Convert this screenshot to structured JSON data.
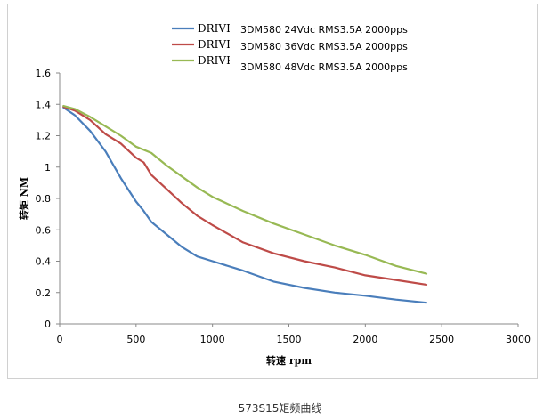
{
  "caption": "573S15矩频曲线",
  "chart_data": {
    "type": "line",
    "xlabel": "转速 rpm",
    "ylabel": "转矩 NM",
    "xlim": [
      0,
      3000
    ],
    "ylim": [
      0,
      1.6
    ],
    "xticks": [
      "0",
      "500",
      "1000",
      "1500",
      "2000",
      "2500",
      "3000"
    ],
    "yticks": [
      "0",
      "0.2",
      "0.4",
      "0.6",
      "0.8",
      "1",
      "1.2",
      "1.4",
      "1.6"
    ],
    "grid": false,
    "legend_position": "top",
    "legend_overlay": [
      "3DM580  24Vdc  RMS3.5A 2000pps",
      "3DM580  36Vdc  RMS3.5A 2000pps",
      "3DM580  48Vdc  RMS3.5A 2000pps"
    ],
    "series": [
      {
        "name": "DRIVE:",
        "color": "#4a7ebb",
        "x": [
          25,
          100,
          200,
          300,
          400,
          500,
          550,
          600,
          700,
          800,
          900,
          1000,
          1200,
          1400,
          1600,
          1800,
          2000,
          2200,
          2400
        ],
        "y": [
          1.38,
          1.33,
          1.23,
          1.1,
          0.93,
          0.78,
          0.72,
          0.65,
          0.57,
          0.49,
          0.43,
          0.4,
          0.34,
          0.27,
          0.23,
          0.2,
          0.18,
          0.155,
          0.135
        ]
      },
      {
        "name": "DRIVE:",
        "color": "#be4b48",
        "x": [
          25,
          100,
          200,
          300,
          400,
          500,
          550,
          600,
          700,
          800,
          900,
          1000,
          1200,
          1400,
          1600,
          1800,
          2000,
          2200,
          2400
        ],
        "y": [
          1.385,
          1.36,
          1.3,
          1.21,
          1.15,
          1.06,
          1.03,
          0.95,
          0.86,
          0.77,
          0.69,
          0.63,
          0.52,
          0.45,
          0.4,
          0.36,
          0.31,
          0.28,
          0.25
        ]
      },
      {
        "name": "DRIVE:",
        "color": "#98b954",
        "x": [
          25,
          100,
          200,
          300,
          400,
          500,
          600,
          700,
          800,
          900,
          1000,
          1200,
          1400,
          1600,
          1800,
          2000,
          2200,
          2400
        ],
        "y": [
          1.39,
          1.37,
          1.32,
          1.26,
          1.2,
          1.13,
          1.09,
          1.01,
          0.94,
          0.87,
          0.81,
          0.72,
          0.64,
          0.57,
          0.5,
          0.44,
          0.37,
          0.32
        ]
      }
    ]
  }
}
